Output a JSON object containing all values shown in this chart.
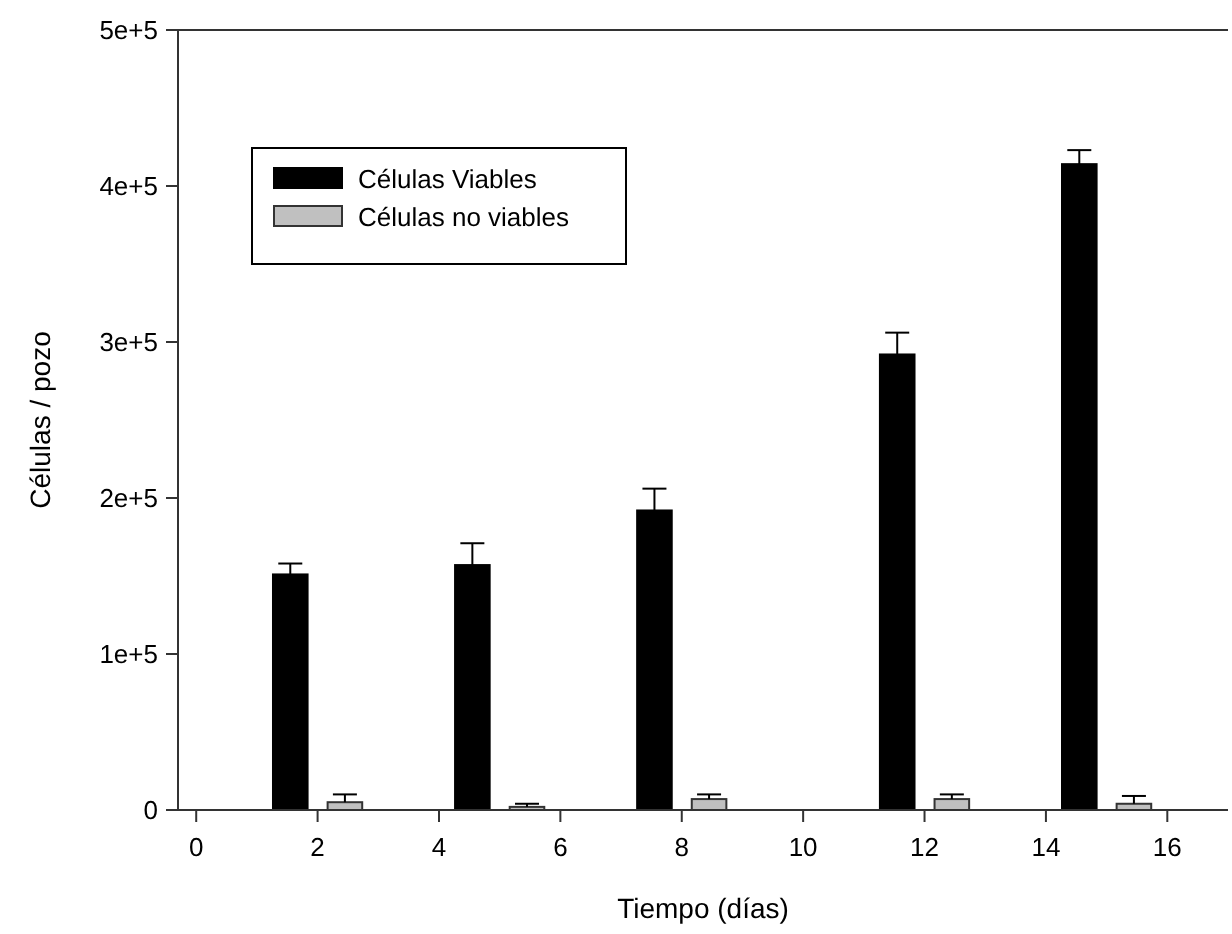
{
  "chart_data": {
    "type": "bar",
    "xlabel": "Tiempo (días)",
    "ylabel": "Células / pozo",
    "xlim": [
      -0.3,
      17
    ],
    "xticks": [
      0,
      2,
      4,
      6,
      8,
      10,
      12,
      14,
      16
    ],
    "ylim": [
      0,
      500000
    ],
    "yticks": [
      {
        "value": 0,
        "label": "0"
      },
      {
        "value": 100000,
        "label": "1e+5"
      },
      {
        "value": 200000,
        "label": "2e+5"
      },
      {
        "value": 300000,
        "label": "3e+5"
      },
      {
        "value": 400000,
        "label": "4e+5"
      },
      {
        "value": 500000,
        "label": "5e+5"
      }
    ],
    "legend": "top left",
    "grid": false,
    "series": [
      {
        "name": "Células Viables",
        "color": "#000000",
        "x": [
          1.55,
          4.55,
          7.55,
          11.55,
          14.55
        ],
        "values": [
          151000,
          157000,
          192000,
          292000,
          414000
        ],
        "errors": [
          [
            151000,
            158000
          ],
          [
            157000,
            171000
          ],
          [
            192000,
            206000
          ],
          [
            292000,
            306000
          ],
          [
            414000,
            423000
          ]
        ]
      },
      {
        "name": "Células no viables",
        "color": "#c0c0c0",
        "x": [
          2.45,
          5.45,
          8.45,
          12.45,
          15.45
        ],
        "values": [
          5000,
          2000,
          7000,
          7000,
          4000
        ],
        "errors": [
          [
            5000,
            10000
          ],
          [
            2000,
            4000
          ],
          [
            7000,
            10000
          ],
          [
            7000,
            10000
          ],
          [
            4000,
            9000
          ]
        ]
      }
    ]
  }
}
